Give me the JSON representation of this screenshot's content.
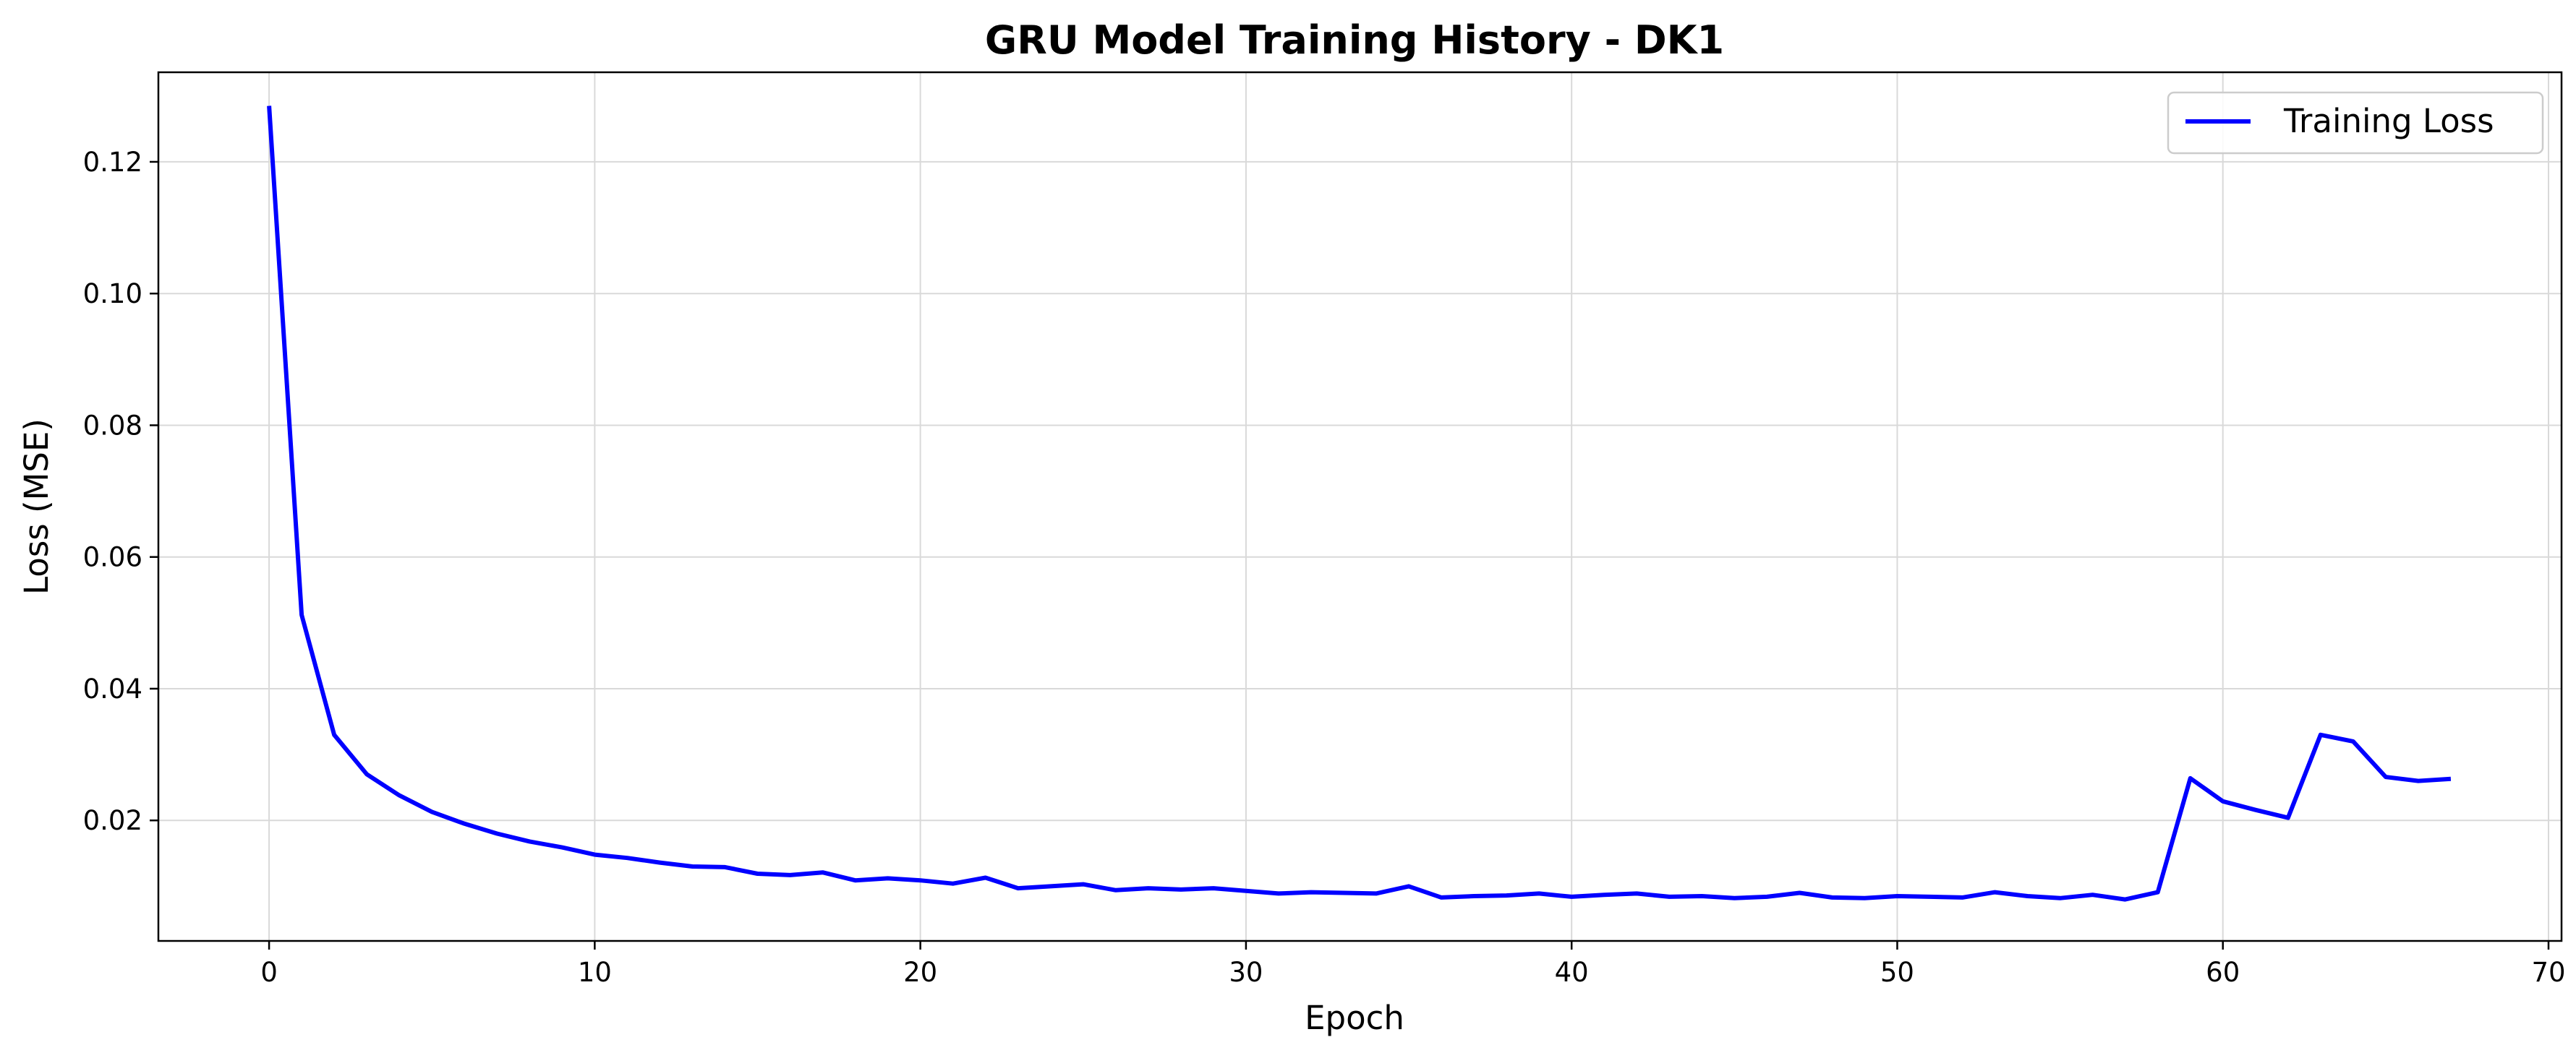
{
  "chart_data": {
    "type": "line",
    "title": "GRU Model Training History - DK1",
    "xlabel": "Epoch",
    "ylabel": "Loss (MSE)",
    "xlim": [
      -3.4,
      70.4
    ],
    "ylim": [
      0.0017,
      0.1336
    ],
    "xticks": [
      0,
      10,
      20,
      30,
      40,
      50,
      60,
      70
    ],
    "yticks": [
      0.02,
      0.04,
      0.06,
      0.08,
      0.1,
      0.12
    ],
    "xtick_labels": [
      "0",
      "10",
      "20",
      "30",
      "40",
      "50",
      "60",
      "70"
    ],
    "ytick_labels": [
      "0.02",
      "0.04",
      "0.06",
      "0.08",
      "0.10",
      "0.12"
    ],
    "grid": true,
    "legend_position": "top-right",
    "series": [
      {
        "name": "Training Loss",
        "color": "#0000ff",
        "x": [
          0,
          1,
          2,
          3,
          4,
          5,
          6,
          7,
          8,
          9,
          10,
          11,
          12,
          13,
          14,
          15,
          16,
          17,
          18,
          19,
          20,
          21,
          22,
          23,
          24,
          25,
          26,
          27,
          28,
          29,
          30,
          31,
          32,
          33,
          34,
          35,
          36,
          37,
          38,
          39,
          40,
          41,
          42,
          43,
          44,
          45,
          46,
          47,
          48,
          49,
          50,
          51,
          52,
          53,
          54,
          55,
          56,
          57,
          58,
          59,
          60,
          61,
          62,
          63,
          64,
          65,
          66,
          67
        ],
        "y": [
          0.1285,
          0.0512,
          0.033,
          0.027,
          0.0238,
          0.0213,
          0.0195,
          0.018,
          0.0168,
          0.0159,
          0.0148,
          0.0143,
          0.0136,
          0.013,
          0.0129,
          0.0119,
          0.0117,
          0.0121,
          0.0109,
          0.0112,
          0.0109,
          0.0104,
          0.0113,
          0.0097,
          0.01,
          0.0103,
          0.0094,
          0.0097,
          0.0095,
          0.0097,
          0.0093,
          0.0089,
          0.0091,
          0.009,
          0.0089,
          0.01,
          0.0083,
          0.0085,
          0.0086,
          0.0089,
          0.0084,
          0.0087,
          0.0089,
          0.0084,
          0.0085,
          0.0082,
          0.0084,
          0.009,
          0.0083,
          0.0082,
          0.0085,
          0.0084,
          0.0083,
          0.0091,
          0.0085,
          0.0082,
          0.0087,
          0.008,
          0.0091,
          0.0264,
          0.0229,
          0.0216,
          0.0204,
          0.033,
          0.032,
          0.0266,
          0.026,
          0.0263
        ]
      }
    ]
  }
}
